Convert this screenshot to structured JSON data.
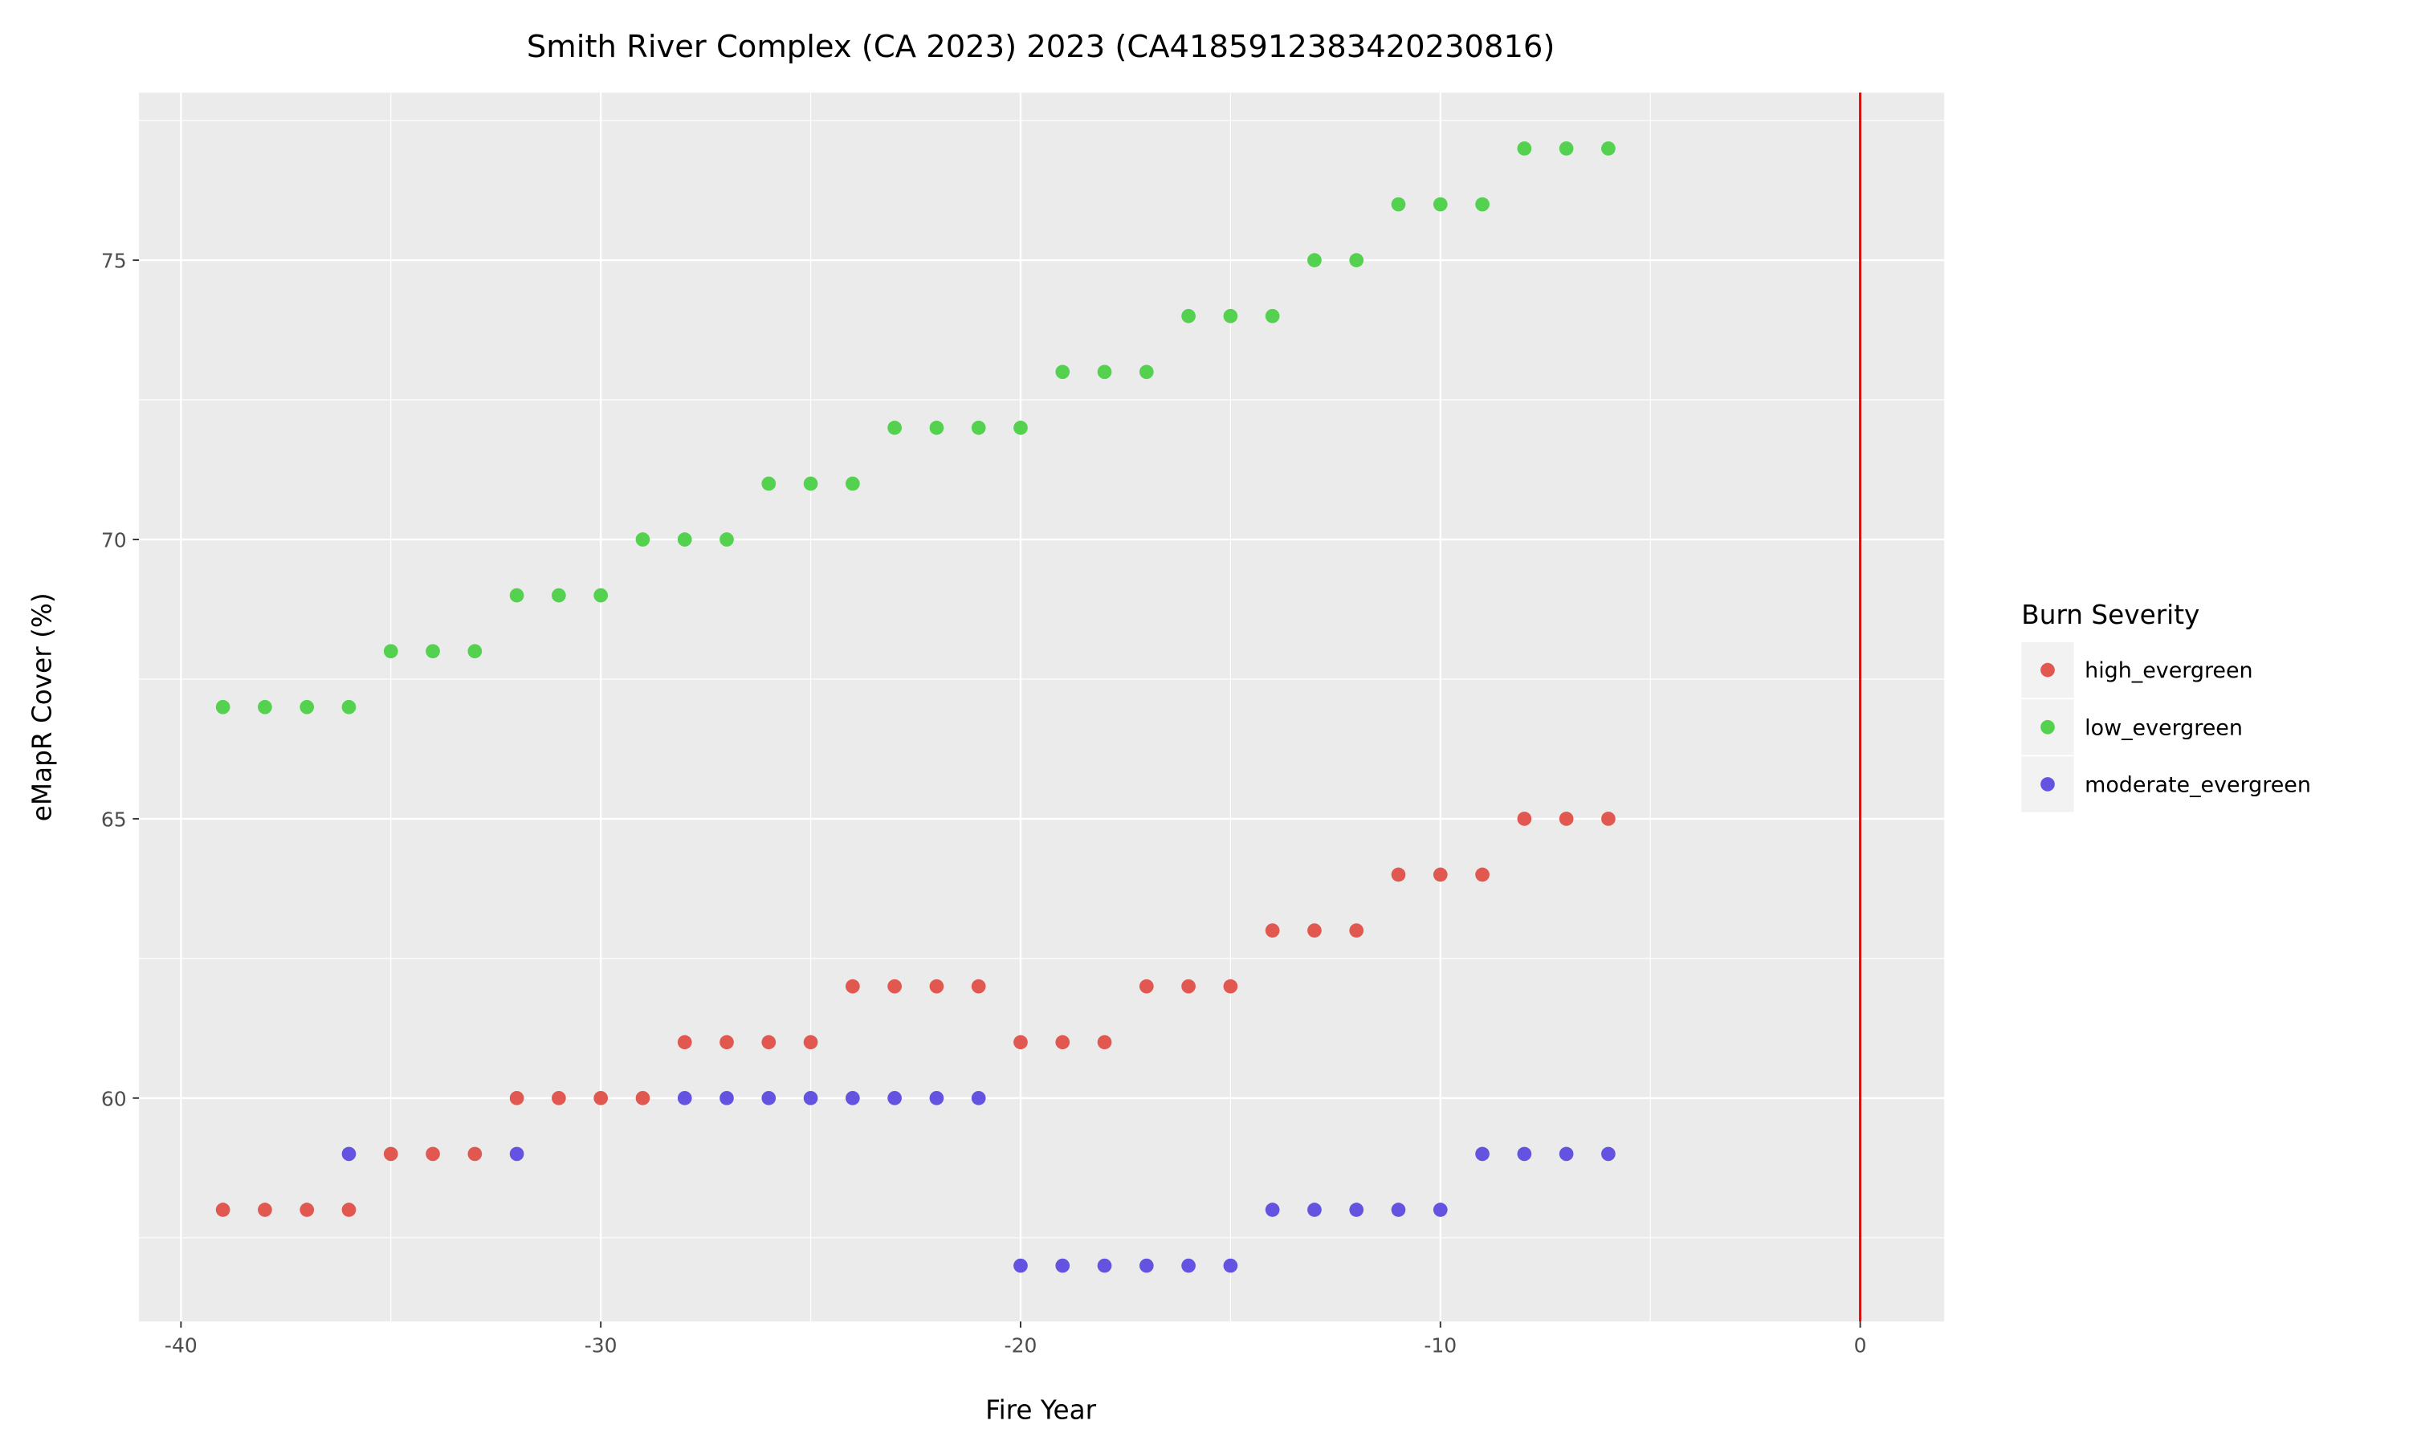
{
  "chart_data": {
    "type": "scatter",
    "title": "Smith River Complex (CA 2023) 2023 (CA4185912383420230816)",
    "xlabel": "Fire Year",
    "ylabel": "eMapR Cover (%)",
    "xlim": [
      -41,
      2
    ],
    "ylim": [
      56,
      78
    ],
    "xticks": [
      -40,
      -30,
      -20,
      -10,
      0
    ],
    "yticks": [
      60,
      65,
      70,
      75
    ],
    "grid": true,
    "vline": {
      "x": 0,
      "color": "#ff0000"
    },
    "legend": {
      "title": "Burn Severity",
      "placement": "right"
    },
    "series": [
      {
        "name": "high_evergreen",
        "color": "#e0584f",
        "x": [
          -39,
          -38,
          -37,
          -36,
          -35,
          -34,
          -33,
          -32,
          -31,
          -30,
          -29,
          -28,
          -27,
          -26,
          -25,
          -24,
          -23,
          -22,
          -21,
          -20,
          -19,
          -18,
          -17,
          -16,
          -15,
          -14,
          -13,
          -12,
          -11,
          -10,
          -9,
          -8,
          -7,
          -6
        ],
        "y": [
          58,
          58,
          58,
          58,
          59,
          59,
          59,
          60,
          60,
          60,
          60,
          61,
          61,
          61,
          61,
          62,
          62,
          62,
          62,
          61,
          61,
          61,
          62,
          62,
          62,
          63,
          63,
          63,
          64,
          64,
          64,
          65,
          65,
          65
        ]
      },
      {
        "name": "low_evergreen",
        "color": "#53d14f",
        "x": [
          -39,
          -38,
          -37,
          -36,
          -35,
          -34,
          -33,
          -32,
          -31,
          -30,
          -29,
          -28,
          -27,
          -26,
          -25,
          -24,
          -23,
          -22,
          -21,
          -20,
          -19,
          -18,
          -17,
          -16,
          -15,
          -14,
          -13,
          -12,
          -11,
          -10,
          -9,
          -8,
          -7,
          -6
        ],
        "y": [
          67,
          67,
          67,
          67,
          68,
          68,
          68,
          69,
          69,
          69,
          70,
          70,
          70,
          71,
          71,
          71,
          72,
          72,
          72,
          72,
          73,
          73,
          73,
          74,
          74,
          74,
          75,
          75,
          76,
          76,
          76,
          77,
          77,
          77
        ]
      },
      {
        "name": "moderate_evergreen",
        "color": "#6453e0",
        "x": [
          -36,
          -32,
          -28,
          -27,
          -26,
          -25,
          -24,
          -23,
          -22,
          -21,
          -20,
          -19,
          -18,
          -17,
          -16,
          -15,
          -14,
          -13,
          -12,
          -11,
          -10,
          -9,
          -8,
          -7,
          -6
        ],
        "y": [
          59,
          59,
          60,
          60,
          60,
          60,
          60,
          60,
          60,
          60,
          57,
          57,
          57,
          57,
          57,
          57,
          58,
          58,
          58,
          58,
          58,
          59,
          59,
          59,
          59
        ]
      }
    ]
  }
}
